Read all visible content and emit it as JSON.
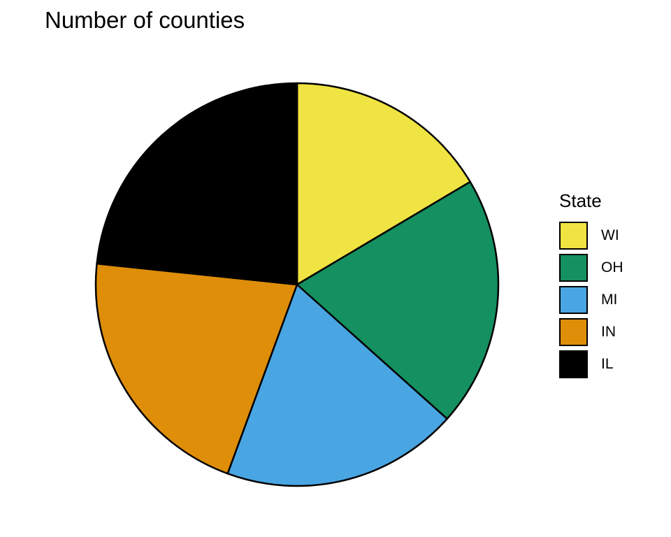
{
  "chart_data": {
    "type": "pie",
    "title": "Number of counties",
    "legend_title": "State",
    "legend_position": "right",
    "categories": [
      "WI",
      "OH",
      "MI",
      "IN",
      "IL"
    ],
    "values": [
      72,
      88,
      83,
      92,
      102
    ],
    "colors": [
      "#F0E442",
      "#159060",
      "#4AA5E3",
      "#DF8E0A",
      "#000000"
    ],
    "start_direction": "top",
    "rotation": "clockwise"
  }
}
